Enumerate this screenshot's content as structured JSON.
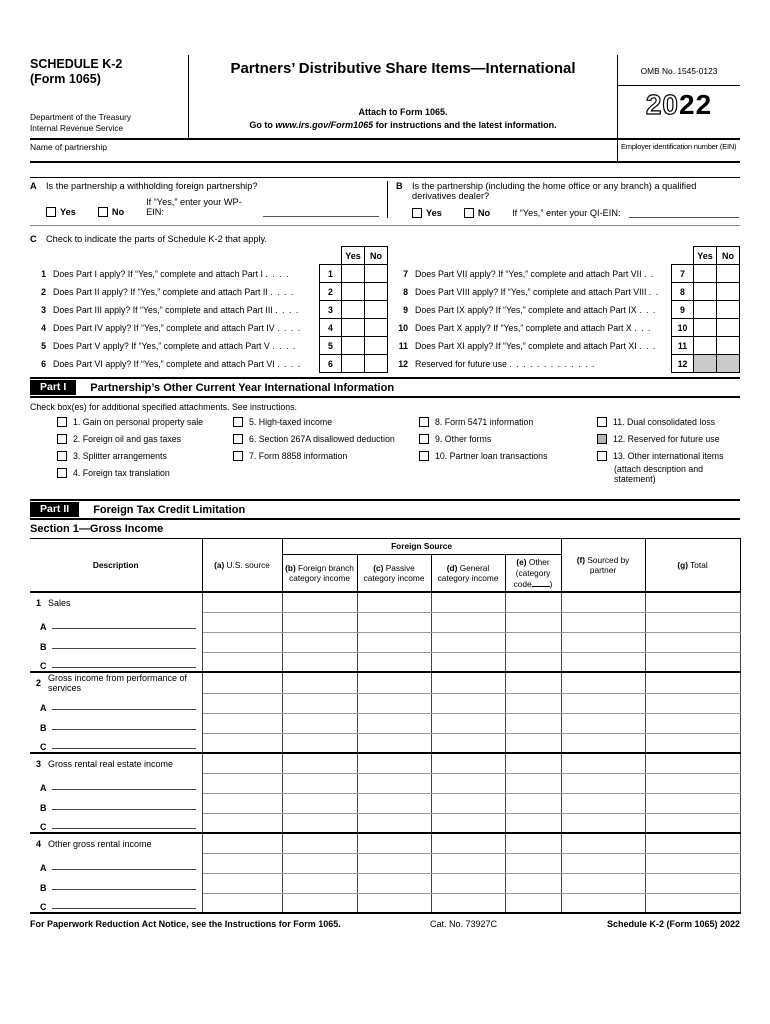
{
  "header": {
    "schedule_line1": "SCHEDULE K-2",
    "schedule_line2": "(Form 1065)",
    "agency_line1": "Department of the Treasury",
    "agency_line2": "Internal Revenue Service",
    "title": "Partners’ Distributive Share Items—International",
    "attach_line": "Attach to Form 1065.",
    "goto_prefix": "Go to ",
    "goto_url": "www.irs.gov/Form1065",
    "goto_suffix": " for instructions and the latest information.",
    "omb": "OMB No. 1545-0123",
    "year_prefix": "20",
    "year_suffix": "22",
    "name_label": "Name of partnership",
    "ein_label": "Employer identification number (EIN)"
  },
  "questions": {
    "a": {
      "letter": "A",
      "text": "Is the partnership a withholding foreign partnership?",
      "yes_label": "Yes",
      "no_label": "No",
      "if_yes": "If “Yes,” enter your WP-EIN:"
    },
    "b": {
      "letter": "B",
      "text": "Is the partnership (including the home office or any branch) a qualified derivatives dealer?",
      "yes_label": "Yes",
      "no_label": "No",
      "if_yes": "If “Yes,” enter your QI-EIN:"
    }
  },
  "section_c": {
    "letter": "C",
    "heading": "Check to indicate the parts of Schedule K-2 that apply.",
    "yes_label": "Yes",
    "no_label": "No",
    "left_rows": [
      {
        "n": "1",
        "q": "Does Part I apply? If “Yes,” complete and attach Part I",
        "d": ".  .  .  ."
      },
      {
        "n": "2",
        "q": "Does Part II apply? If “Yes,” complete and attach Part II",
        "d": ".  .  .  ."
      },
      {
        "n": "3",
        "q": "Does Part III apply? If “Yes,” complete and attach Part III",
        "d": ".  .  .  ."
      },
      {
        "n": "4",
        "q": "Does Part IV apply? If “Yes,” complete and attach Part IV",
        "d": ".  .  .  ."
      },
      {
        "n": "5",
        "q": "Does Part V apply? If “Yes,” complete and attach Part V",
        "d": ".  .  .  ."
      },
      {
        "n": "6",
        "q": "Does Part VI apply? If “Yes,” complete and attach Part VI",
        "d": ".  .  .  ."
      }
    ],
    "right_rows": [
      {
        "n": "7",
        "q": "Does Part VII apply? If “Yes,” complete and attach Part VII",
        "d": ".  ."
      },
      {
        "n": "8",
        "q": "Does Part VIII apply? If “Yes,” complete and attach Part VIII",
        "d": ".  ."
      },
      {
        "n": "9",
        "q": "Does Part IX apply? If “Yes,” complete and attach Part IX",
        "d": ".  .  ."
      },
      {
        "n": "10",
        "q": "Does Part X apply? If “Yes,” complete and attach Part X",
        "d": ".  .  ."
      },
      {
        "n": "11",
        "q": "Does Part XI apply? If “Yes,” complete and attach Part XI",
        "d": ".  .  ."
      },
      {
        "n": "12",
        "q": "Reserved for future use",
        "d": ".  .  .  .  .  .  .  .  .  .  .  .  ."
      }
    ]
  },
  "part1": {
    "label": "Part I",
    "title": "Partnership’s Other Current Year International Information",
    "instruction": "Check box(es) for additional specified attachments. See instructions.",
    "col1": [
      "1. Gain on personal property sale",
      "2. Foreign oil and gas taxes",
      "3. Splitter arrangements",
      "4. Foreign tax translation"
    ],
    "col2": [
      "5. High-taxed income",
      "6. Section 267A disallowed deduction",
      "7. Form 8858 information"
    ],
    "col3": [
      "8. Form 5471 information",
      "9. Other forms",
      "10. Partner loan transactions"
    ],
    "col4": [
      "11. Dual consolidated loss",
      "12. Reserved for future use",
      "13. Other international items"
    ],
    "item13_note": "(attach description and statement)"
  },
  "part2": {
    "label": "Part II",
    "title": "Foreign Tax Credit Limitation",
    "section_heading": "Section 1—Gross Income",
    "table": {
      "th_description": "Description",
      "th_foreign": "Foreign Source",
      "th_a_tag": "(a)",
      "th_a": "U.S. source",
      "th_b_tag": "(b)",
      "th_b_l1": "Foreign branch",
      "th_b_l2": "category income",
      "th_c_tag": "(c)",
      "th_c_l1": "Passive",
      "th_c_l2": "category income",
      "th_d_tag": "(d)",
      "th_d_l1": "General",
      "th_d_l2": "category income",
      "th_e_tag": "(e)",
      "th_e_l1": "Other",
      "th_e_l2a": "(category code",
      "th_e_l2b": ")",
      "th_f_tag": "(f)",
      "th_f_l1": "Sourced by",
      "th_f_l2": "partner",
      "th_g_tag": "(g)",
      "th_g": "Total",
      "rows": [
        {
          "n": "1",
          "label": "Sales"
        },
        {
          "n": "2",
          "label": "Gross income from performance of services"
        },
        {
          "n": "3",
          "label": "Gross rental real estate income"
        },
        {
          "n": "4",
          "label": "Other gross rental income"
        }
      ],
      "sub_letters": [
        "A",
        "B",
        "C"
      ]
    }
  },
  "footer": {
    "left": "For Paperwork Reduction Act Notice, see the Instructions for Form 1065.",
    "center": "Cat. No. 73927C",
    "right": "Schedule K-2 (Form 1065) 2022"
  }
}
